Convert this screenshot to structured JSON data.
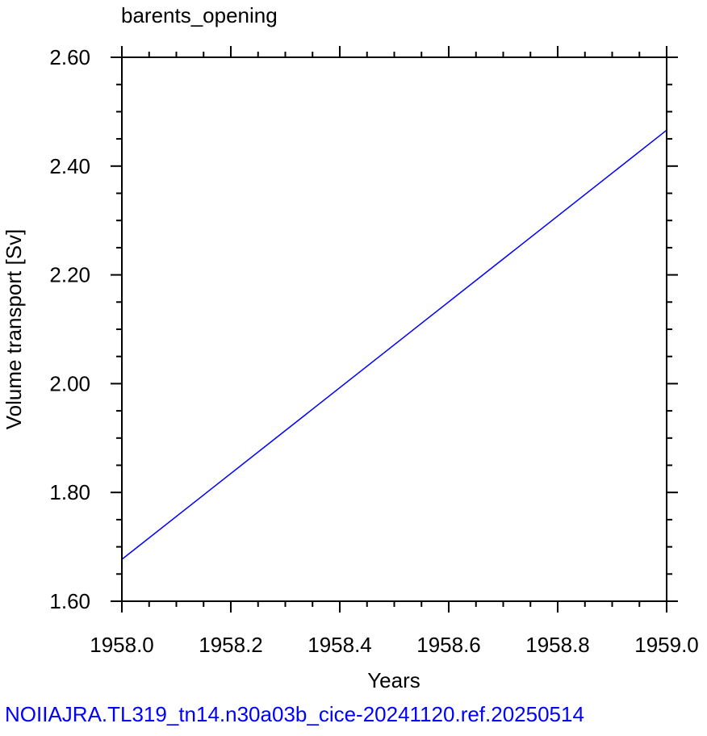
{
  "chart_data": {
    "type": "line",
    "title": "barents_opening",
    "xlabel": "Years",
    "ylabel": "Volume transport [Sv]",
    "xlim": [
      1958.0,
      1959.0
    ],
    "ylim": [
      1.6,
      2.6
    ],
    "x_ticks": [
      "1958.0",
      "1958.2",
      "1958.4",
      "1958.6",
      "1958.8",
      "1959.0"
    ],
    "y_ticks": [
      "1.60",
      "1.80",
      "2.00",
      "2.20",
      "2.40",
      "2.60"
    ],
    "grid": false,
    "series": [
      {
        "color": "#0000ff",
        "x": [
          1958.0,
          1959.0
        ],
        "y": [
          1.677,
          2.466
        ]
      }
    ]
  },
  "footer": {
    "caption": "NOIIAJRA.TL319_tn14.n30a03b_cice-20241120.ref.20250514",
    "color": "#0000ff"
  }
}
